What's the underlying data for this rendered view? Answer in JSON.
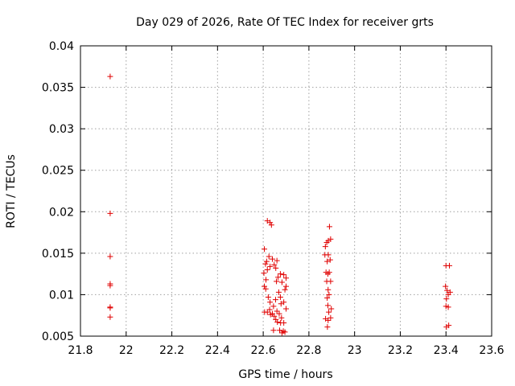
{
  "chart_data": {
    "type": "scatter",
    "title": "Day 029 of 2026, Rate Of TEC Index for receiver grts",
    "xlabel": "GPS time / hours",
    "ylabel": "ROTI / TECUs",
    "xlim": [
      21.8,
      23.6
    ],
    "ylim": [
      0.005,
      0.04
    ],
    "xticks": [
      21.8,
      22.0,
      22.2,
      22.4,
      22.6,
      22.8,
      23.0,
      23.2,
      23.4,
      23.6
    ],
    "xtick_labels": [
      "21.8",
      "22",
      "22.2",
      "22.4",
      "22.6",
      "22.8",
      "23",
      "23.2",
      "23.4",
      "23.6"
    ],
    "yticks": [
      0.005,
      0.01,
      0.015,
      0.02,
      0.025,
      0.03,
      0.035,
      0.04
    ],
    "ytick_labels": [
      "0.005",
      "0.01",
      "0.015",
      "0.02",
      "0.025",
      "0.03",
      "0.035",
      "0.04"
    ],
    "grid": true,
    "marker": "+",
    "color": "#e00000",
    "series": [
      {
        "name": "ROTI",
        "points": [
          [
            21.93,
            0.0363
          ],
          [
            21.93,
            0.0198
          ],
          [
            21.93,
            0.0146
          ],
          [
            21.93,
            0.0113
          ],
          [
            21.93,
            0.0111
          ],
          [
            21.93,
            0.0085
          ],
          [
            21.93,
            0.0084
          ],
          [
            21.93,
            0.0073
          ],
          [
            22.618,
            0.0189
          ],
          [
            22.63,
            0.0187
          ],
          [
            22.636,
            0.0184
          ],
          [
            22.605,
            0.0155
          ],
          [
            22.625,
            0.0146
          ],
          [
            22.64,
            0.0143
          ],
          [
            22.615,
            0.014
          ],
          [
            22.66,
            0.0141
          ],
          [
            22.61,
            0.0137
          ],
          [
            22.63,
            0.0134
          ],
          [
            22.648,
            0.0136
          ],
          [
            22.655,
            0.0132
          ],
          [
            22.618,
            0.013
          ],
          [
            22.675,
            0.0125
          ],
          [
            22.603,
            0.0126
          ],
          [
            22.665,
            0.0121
          ],
          [
            22.69,
            0.0124
          ],
          [
            22.7,
            0.012
          ],
          [
            22.612,
            0.0118
          ],
          [
            22.658,
            0.0116
          ],
          [
            22.682,
            0.0115
          ],
          [
            22.605,
            0.011
          ],
          [
            22.7,
            0.011
          ],
          [
            22.611,
            0.0107
          ],
          [
            22.695,
            0.0106
          ],
          [
            22.668,
            0.0103
          ],
          [
            22.675,
            0.0097
          ],
          [
            22.622,
            0.0097
          ],
          [
            22.654,
            0.0094
          ],
          [
            22.69,
            0.0091
          ],
          [
            22.63,
            0.0091
          ],
          [
            22.678,
            0.0089
          ],
          [
            22.645,
            0.0086
          ],
          [
            22.7,
            0.0083
          ],
          [
            22.628,
            0.0082
          ],
          [
            22.66,
            0.008
          ],
          [
            22.606,
            0.0079
          ],
          [
            22.618,
            0.0079
          ],
          [
            22.64,
            0.0077
          ],
          [
            22.67,
            0.0077
          ],
          [
            22.632,
            0.0076
          ],
          [
            22.648,
            0.0074
          ],
          [
            22.68,
            0.0072
          ],
          [
            22.655,
            0.007
          ],
          [
            22.662,
            0.0067
          ],
          [
            22.69,
            0.0066
          ],
          [
            22.676,
            0.0066
          ],
          [
            22.645,
            0.0057
          ],
          [
            22.672,
            0.0057
          ],
          [
            22.688,
            0.0056
          ],
          [
            22.682,
            0.0054
          ],
          [
            22.695,
            0.0055
          ],
          [
            22.89,
            0.0182
          ],
          [
            22.895,
            0.0167
          ],
          [
            22.885,
            0.0165
          ],
          [
            22.878,
            0.0163
          ],
          [
            22.872,
            0.0158
          ],
          [
            22.87,
            0.0148
          ],
          [
            22.885,
            0.0148
          ],
          [
            22.893,
            0.0142
          ],
          [
            22.88,
            0.014
          ],
          [
            22.875,
            0.0127
          ],
          [
            22.889,
            0.0127
          ],
          [
            22.883,
            0.0125
          ],
          [
            22.878,
            0.0116
          ],
          [
            22.895,
            0.0116
          ],
          [
            22.884,
            0.0106
          ],
          [
            22.888,
            0.01
          ],
          [
            22.88,
            0.0096
          ],
          [
            22.883,
            0.0087
          ],
          [
            22.898,
            0.0083
          ],
          [
            22.887,
            0.0079
          ],
          [
            22.873,
            0.0071
          ],
          [
            22.895,
            0.0072
          ],
          [
            22.884,
            0.0069
          ],
          [
            22.881,
            0.0061
          ],
          [
            23.4,
            0.0135
          ],
          [
            23.415,
            0.0135
          ],
          [
            23.398,
            0.011
          ],
          [
            23.405,
            0.0105
          ],
          [
            23.418,
            0.0103
          ],
          [
            23.41,
            0.01
          ],
          [
            23.402,
            0.0095
          ],
          [
            23.4,
            0.0086
          ],
          [
            23.41,
            0.0085
          ],
          [
            23.412,
            0.0063
          ],
          [
            23.402,
            0.0061
          ]
        ]
      }
    ]
  }
}
